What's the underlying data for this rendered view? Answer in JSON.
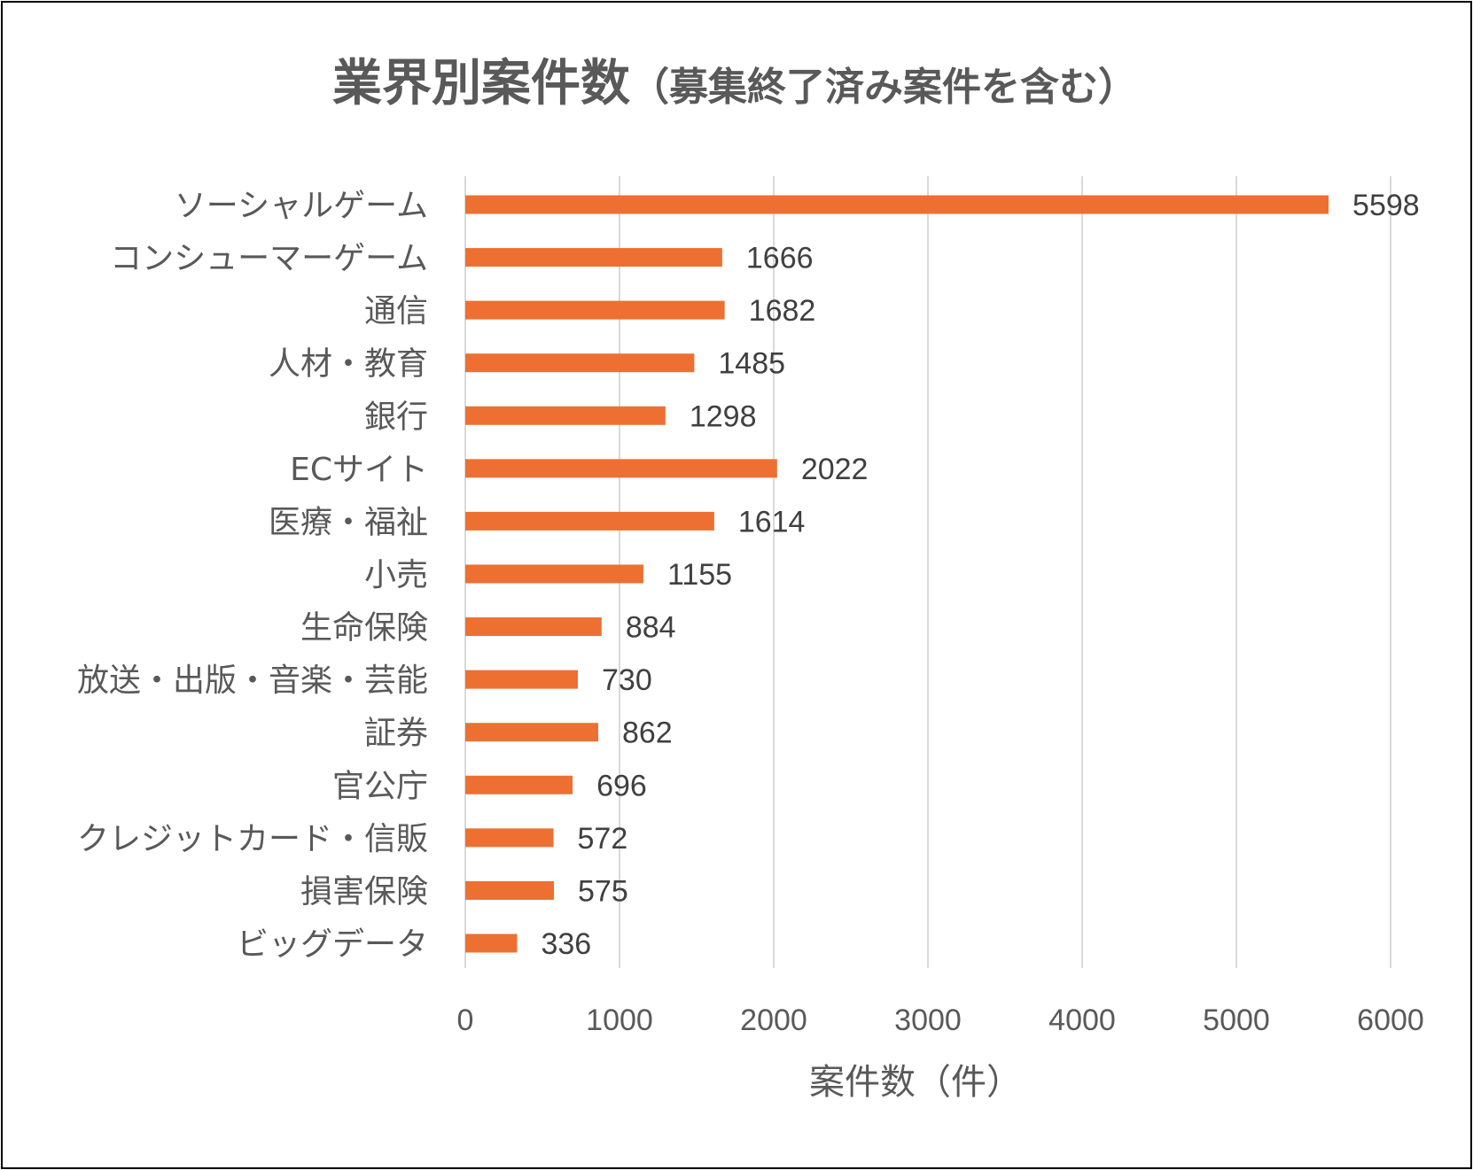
{
  "chart_data": {
    "type": "bar",
    "orientation": "horizontal",
    "title": "業界別案件数",
    "subtitle": "（募集終了済み案件を含む）",
    "xlabel": "案件数（件）",
    "ylabel": "",
    "xlim": [
      0,
      6000
    ],
    "x_ticks": [
      "0",
      "1000",
      "2000",
      "3000",
      "4000",
      "5000",
      "6000"
    ],
    "grid": true,
    "legend": "none",
    "bar_color": "#ED7032",
    "categories": [
      "ソーシャルゲーム",
      "コンシューマーゲーム",
      "通信",
      "人材・教育",
      "銀行",
      "ECサイト",
      "医療・福祉",
      "小売",
      "生命保険",
      "放送・出版・音楽・芸能",
      "証券",
      "官公庁",
      "クレジットカード・信販",
      "損害保険",
      "ビッグデータ"
    ],
    "values": [
      5598,
      1666,
      1682,
      1485,
      1298,
      2022,
      1614,
      1155,
      884,
      730,
      862,
      696,
      572,
      575,
      336
    ],
    "value_labels": [
      "5598",
      "1666",
      "1682",
      "1485",
      "1298",
      "2022",
      "1614",
      "1155",
      "884",
      "730",
      "862",
      "696",
      "572",
      "575",
      "336"
    ]
  }
}
